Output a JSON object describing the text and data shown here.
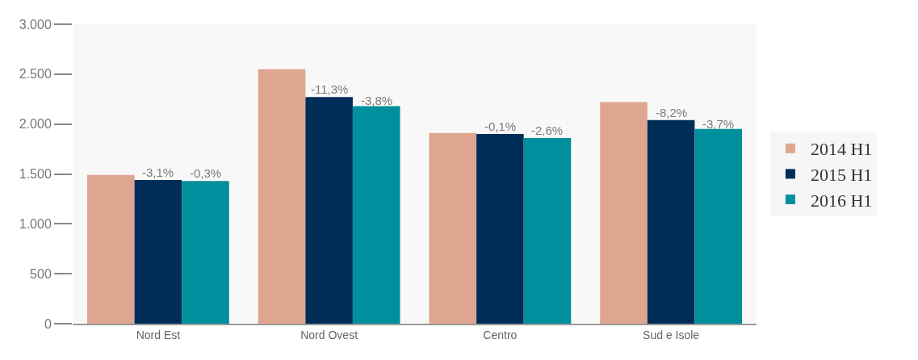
{
  "chart_data": {
    "type": "bar",
    "categories": [
      "Nord Est",
      "Nord Ovest",
      "Centro",
      "Sud e Isole"
    ],
    "series": [
      {
        "name": "2014 H1",
        "color": "#dea591",
        "values": [
          1490,
          2550,
          1910,
          2220
        ]
      },
      {
        "name": "2015 H1",
        "color": "#002d57",
        "values": [
          1440,
          2270,
          1900,
          2040
        ]
      },
      {
        "name": "2016 H1",
        "color": "#008f9c",
        "values": [
          1430,
          2180,
          1860,
          1950
        ]
      }
    ],
    "annotations": [
      {
        "text": "-3,1%",
        "x": "Nord Est",
        "y": 1440
      },
      {
        "text": "-0,3%",
        "x": "Nord Est",
        "y": 1430
      },
      {
        "text": "-11,3%",
        "x": "Nord Ovest",
        "y": 2270
      },
      "-3,8%",
      {
        "text": "-0,1%",
        "x": "Centro",
        "y": 1900
      },
      {
        "text": "-2,6%",
        "x": "Centro",
        "y": 1860
      },
      {
        "text": "-8,2%",
        "x": "Sud e Isole",
        "y": 2040
      },
      "-3,7%"
    ],
    "ylim": [
      0,
      3000
    ],
    "yticks": [
      {
        "value": 0,
        "label": "0"
      },
      {
        "value": 500,
        "label": "500"
      },
      {
        "value": 1000,
        "label": "1.000"
      },
      {
        "value": 1500,
        "label": "1.500"
      },
      {
        "value": 2000,
        "label": "2.000"
      },
      {
        "value": 2500,
        "label": "2.500"
      },
      {
        "value": 3000,
        "label": "3.000"
      }
    ],
    "grid": false,
    "legend": "right"
  }
}
